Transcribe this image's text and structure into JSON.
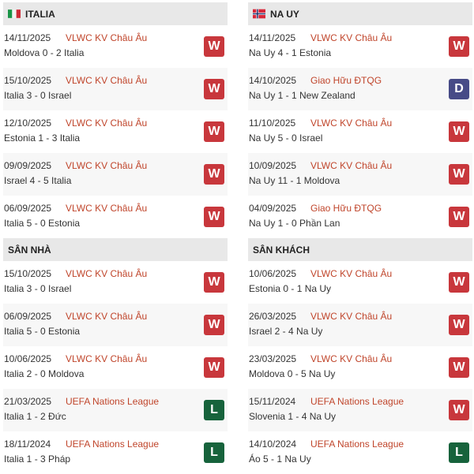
{
  "colors": {
    "win": "#c8373c",
    "draw": "#474b87",
    "loss": "#17633c",
    "competition": "#c0452b"
  },
  "italia": {
    "title": "ITALIA",
    "flag": "italy-flag",
    "matches": [
      {
        "date": "14/11/2025",
        "comp": "VLWC KV Châu Âu",
        "score": "Moldova 0 - 2 Italia",
        "result": "W"
      },
      {
        "date": "15/10/2025",
        "comp": "VLWC KV Châu Âu",
        "score": "Italia 3 - 0 Israel",
        "result": "W"
      },
      {
        "date": "12/10/2025",
        "comp": "VLWC KV Châu Âu",
        "score": "Estonia 1 - 3 Italia",
        "result": "W"
      },
      {
        "date": "09/09/2025",
        "comp": "VLWC KV Châu Âu",
        "score": "Israel 4 - 5 Italia",
        "result": "W"
      },
      {
        "date": "06/09/2025",
        "comp": "VLWC KV Châu Âu",
        "score": "Italia 5 - 0 Estonia",
        "result": "W"
      }
    ]
  },
  "nauy": {
    "title": "NA UY",
    "flag": "norway-flag",
    "matches": [
      {
        "date": "14/11/2025",
        "comp": "VLWC KV Châu Âu",
        "score": "Na Uy 4 - 1 Estonia",
        "result": "W"
      },
      {
        "date": "14/10/2025",
        "comp": "Giao Hữu ĐTQG",
        "score": "Na Uy 1 - 1 New Zealand",
        "result": "D"
      },
      {
        "date": "11/10/2025",
        "comp": "VLWC KV Châu Âu",
        "score": "Na Uy 5 - 0 Israel",
        "result": "W"
      },
      {
        "date": "10/09/2025",
        "comp": "VLWC KV Châu Âu",
        "score": "Na Uy 11 - 1 Moldova",
        "result": "W"
      },
      {
        "date": "04/09/2025",
        "comp": "Giao Hữu ĐTQG",
        "score": "Na Uy 1 - 0 Phần Lan",
        "result": "W"
      }
    ]
  },
  "home": {
    "title": "SÂN NHÀ",
    "matches": [
      {
        "date": "15/10/2025",
        "comp": "VLWC KV Châu Âu",
        "score": "Italia 3 - 0 Israel",
        "result": "W"
      },
      {
        "date": "06/09/2025",
        "comp": "VLWC KV Châu Âu",
        "score": "Italia 5 - 0 Estonia",
        "result": "W"
      },
      {
        "date": "10/06/2025",
        "comp": "VLWC KV Châu Âu",
        "score": "Italia 2 - 0 Moldova",
        "result": "W"
      },
      {
        "date": "21/03/2025",
        "comp": "UEFA Nations League",
        "score": "Italia 1 - 2 Đức",
        "result": "L"
      },
      {
        "date": "18/11/2024",
        "comp": "UEFA Nations League",
        "score": "Italia 1 - 3 Pháp",
        "result": "L"
      }
    ]
  },
  "away": {
    "title": "SÂN KHÁCH",
    "matches": [
      {
        "date": "10/06/2025",
        "comp": "VLWC KV Châu Âu",
        "score": "Estonia 0 - 1 Na Uy",
        "result": "W"
      },
      {
        "date": "26/03/2025",
        "comp": "VLWC KV Châu Âu",
        "score": "Israel 2 - 4 Na Uy",
        "result": "W"
      },
      {
        "date": "23/03/2025",
        "comp": "VLWC KV Châu Âu",
        "score": "Moldova 0 - 5 Na Uy",
        "result": "W"
      },
      {
        "date": "15/11/2024",
        "comp": "UEFA Nations League",
        "score": "Slovenia 1 - 4 Na Uy",
        "result": "W"
      },
      {
        "date": "14/10/2024",
        "comp": "UEFA Nations League",
        "score": "Áo 5 - 1 Na Uy",
        "result": "L"
      }
    ]
  }
}
